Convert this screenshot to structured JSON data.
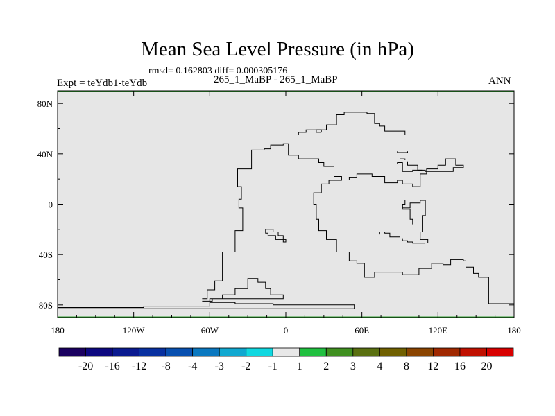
{
  "chart_data": {
    "type": "map",
    "title": "Mean Sea Level Pressure (in hPa)",
    "stats": "rmsd= 0.162803 diff= 0.000305176",
    "left_label": "Expt = teYdb1-teYdb",
    "center_label": "265_1_MaBP - 265_1_MaBP",
    "right_label": "ANN",
    "field_fill_color": "#e6e6e6",
    "lon_ticks": [
      {
        "value": -180,
        "label": "180"
      },
      {
        "value": -120,
        "label": "120W"
      },
      {
        "value": -60,
        "label": "60W"
      },
      {
        "value": 0,
        "label": "0"
      },
      {
        "value": 60,
        "label": "60E"
      },
      {
        "value": 120,
        "label": "120E"
      },
      {
        "value": 180,
        "label": "180"
      }
    ],
    "lat_ticks": [
      {
        "value": 80,
        "label": "80N"
      },
      {
        "value": 40,
        "label": "40N"
      },
      {
        "value": 0,
        "label": "0"
      },
      {
        "value": -40,
        "label": "40S"
      },
      {
        "value": -80,
        "label": "80S"
      }
    ],
    "lon_range": [
      -180,
      180
    ],
    "lat_range": [
      -90,
      90
    ],
    "colorbar": {
      "labels": [
        "-20",
        "-16",
        "-12",
        "-8",
        "-4",
        "-3",
        "-2",
        "-1",
        "1",
        "2",
        "3",
        "4",
        "8",
        "12",
        "16",
        "20"
      ],
      "colors": [
        "#1a0060",
        "#0d0880",
        "#0a1a90",
        "#0830a0",
        "#0850b0",
        "#0a78c0",
        "#10a8d0",
        "#10d8e0",
        "#e8e8e8",
        "#20c040",
        "#409020",
        "#5a7010",
        "#706000",
        "#8a4400",
        "#a02800",
        "#c01000",
        "#d80000"
      ]
    },
    "coastlines": [
      [
        [
          -180,
          -82
        ],
        [
          -112,
          -82
        ],
        [
          -112,
          -81
        ],
        [
          -60,
          -81
        ],
        [
          -60,
          -78
        ],
        [
          -40,
          -78
        ],
        [
          -40,
          -79
        ],
        [
          -10,
          -79
        ],
        [
          -10,
          -80
        ],
        [
          54,
          -80
        ],
        [
          54,
          -83
        ],
        [
          -180,
          -83
        ]
      ],
      [
        [
          -66,
          -75
        ],
        [
          -62,
          -75
        ],
        [
          -62,
          -68
        ],
        [
          -56,
          -68
        ],
        [
          -56,
          -61
        ],
        [
          -50,
          -61
        ],
        [
          -50,
          -38
        ],
        [
          -40,
          -38
        ],
        [
          -40,
          -21
        ],
        [
          -34,
          -21
        ],
        [
          -34,
          -3
        ],
        [
          -37,
          -3
        ],
        [
          -37,
          4
        ],
        [
          -35,
          4
        ],
        [
          -35,
          14
        ],
        [
          -38,
          14
        ],
        [
          -38,
          28
        ],
        [
          -27,
          28
        ],
        [
          -27,
          43
        ],
        [
          -17,
          43
        ],
        [
          -17,
          44
        ],
        [
          -12,
          44
        ],
        [
          -12,
          47
        ],
        [
          -2,
          47
        ],
        [
          -2,
          48
        ],
        [
          2,
          48
        ],
        [
          2,
          39
        ],
        [
          10,
          39
        ],
        [
          10,
          36
        ],
        [
          26,
          36
        ],
        [
          26,
          33
        ],
        [
          30,
          33
        ],
        [
          30,
          30
        ],
        [
          38,
          30
        ],
        [
          38,
          22
        ],
        [
          44,
          22
        ],
        [
          44,
          19
        ],
        [
          34,
          19
        ],
        [
          34,
          16
        ],
        [
          28,
          16
        ],
        [
          28,
          9
        ],
        [
          22,
          9
        ],
        [
          22,
          0
        ],
        [
          24,
          0
        ],
        [
          24,
          -12
        ],
        [
          26,
          -12
        ],
        [
          26,
          -21
        ],
        [
          32,
          -21
        ],
        [
          32,
          -28
        ],
        [
          40,
          -28
        ],
        [
          40,
          -38
        ],
        [
          50,
          -38
        ],
        [
          50,
          -45
        ],
        [
          56,
          -45
        ],
        [
          56,
          -47
        ],
        [
          62,
          -47
        ],
        [
          62,
          -58
        ],
        [
          70,
          -58
        ],
        [
          70,
          -54
        ],
        [
          92,
          -54
        ],
        [
          92,
          -56
        ],
        [
          105,
          -56
        ],
        [
          105,
          -51
        ],
        [
          115,
          -51
        ],
        [
          115,
          -47
        ],
        [
          124,
          -47
        ],
        [
          124,
          -48
        ],
        [
          130,
          -48
        ],
        [
          130,
          -44
        ],
        [
          140,
          -44
        ],
        [
          140,
          -45
        ],
        [
          142,
          -45
        ],
        [
          142,
          -50
        ],
        [
          148,
          -50
        ],
        [
          148,
          -55
        ],
        [
          152,
          -55
        ],
        [
          152,
          -58
        ],
        [
          160,
          -58
        ],
        [
          160,
          -79
        ],
        [
          180,
          -79
        ]
      ],
      [
        [
          -66,
          -77
        ],
        [
          -58,
          -77
        ],
        [
          -58,
          -75
        ],
        [
          -50,
          -75
        ],
        [
          -50,
          -72
        ],
        [
          -40,
          -72
        ],
        [
          -40,
          -67
        ],
        [
          -30,
          -67
        ],
        [
          -30,
          -59
        ],
        [
          -22,
          -59
        ],
        [
          -22,
          -62
        ],
        [
          -16,
          -62
        ],
        [
          -16,
          -67
        ],
        [
          -12,
          -67
        ],
        [
          -12,
          -72
        ],
        [
          -2,
          -72
        ],
        [
          -2,
          -75
        ],
        [
          -60,
          -75
        ],
        [
          -60,
          -77
        ],
        [
          -66,
          -77
        ]
      ],
      [
        [
          -16,
          -20
        ],
        [
          -10,
          -20
        ],
        [
          -10,
          -22
        ],
        [
          -6,
          -22
        ],
        [
          -6,
          -25
        ],
        [
          -2,
          -25
        ],
        [
          -2,
          -28
        ],
        [
          0,
          -28
        ],
        [
          0,
          -30
        ],
        [
          -2,
          -30
        ],
        [
          -2,
          -28
        ],
        [
          -8,
          -28
        ],
        [
          -8,
          -25
        ],
        [
          -14,
          -25
        ],
        [
          -14,
          -23
        ],
        [
          -16,
          -23
        ],
        [
          -16,
          -20
        ]
      ],
      [
        [
          50,
          19
        ],
        [
          50,
          21
        ],
        [
          56,
          21
        ],
        [
          56,
          24
        ],
        [
          68,
          24
        ],
        [
          68,
          22
        ],
        [
          78,
          22
        ],
        [
          78,
          17
        ],
        [
          88,
          17
        ],
        [
          88,
          19
        ],
        [
          92,
          19
        ],
        [
          92,
          16
        ],
        [
          100,
          16
        ],
        [
          100,
          14
        ],
        [
          106,
          14
        ],
        [
          106,
          24
        ],
        [
          111,
          24
        ],
        [
          111,
          28
        ],
        [
          120,
          28
        ],
        [
          120,
          31
        ],
        [
          126,
          31
        ],
        [
          126,
          36
        ],
        [
          134,
          36
        ],
        [
          134,
          31
        ],
        [
          140,
          31
        ],
        [
          140,
          29
        ],
        [
          132,
          29
        ],
        [
          132,
          26
        ],
        [
          110,
          26
        ],
        [
          110,
          27
        ],
        [
          100,
          27
        ],
        [
          100,
          26
        ],
        [
          92,
          26
        ],
        [
          92,
          33
        ],
        [
          88,
          33
        ],
        [
          88,
          32
        ]
      ],
      [
        [
          10,
          55
        ],
        [
          10,
          57
        ],
        [
          16,
          57
        ],
        [
          16,
          59
        ],
        [
          32,
          59
        ],
        [
          32,
          63
        ],
        [
          40,
          63
        ],
        [
          40,
          71
        ],
        [
          46,
          71
        ],
        [
          46,
          73
        ],
        [
          64,
          73
        ],
        [
          64,
          72
        ],
        [
          70,
          72
        ],
        [
          70,
          64
        ],
        [
          74,
          64
        ],
        [
          74,
          62
        ],
        [
          78,
          62
        ],
        [
          78,
          58
        ],
        [
          94,
          58
        ],
        [
          94,
          55
        ]
      ],
      [
        [
          28,
          57
        ],
        [
          28,
          59
        ],
        [
          24,
          59
        ],
        [
          24,
          57
        ],
        [
          28,
          57
        ]
      ],
      [
        [
          96,
          34
        ],
        [
          96,
          31
        ],
        [
          104,
          31
        ],
        [
          104,
          27
        ],
        [
          108,
          27
        ]
      ],
      [
        [
          88,
          42
        ],
        [
          88,
          41
        ],
        [
          96,
          41
        ],
        [
          96,
          42
        ]
      ],
      [
        [
          94,
          35
        ],
        [
          94,
          36
        ],
        [
          90,
          36
        ]
      ],
      [
        [
          90,
          -24
        ],
        [
          90,
          -26
        ],
        [
          82,
          -26
        ],
        [
          82,
          -23
        ],
        [
          78,
          -23
        ],
        [
          78,
          -22
        ],
        [
          74,
          -22
        ],
        [
          74,
          -24
        ]
      ],
      [
        [
          112,
          -31
        ],
        [
          112,
          -28
        ],
        [
          106,
          -28
        ],
        [
          106,
          -22
        ],
        [
          108,
          -22
        ],
        [
          108,
          -9
        ],
        [
          110,
          -9
        ],
        [
          110,
          3
        ],
        [
          106,
          3
        ],
        [
          106,
          1
        ],
        [
          98,
          1
        ],
        [
          98,
          -3
        ],
        [
          92,
          -3
        ],
        [
          92,
          0
        ],
        [
          94,
          0
        ],
        [
          94,
          3
        ]
      ],
      [
        [
          100,
          -16
        ],
        [
          100,
          -12
        ],
        [
          98,
          -12
        ],
        [
          98,
          -4
        ],
        [
          92,
          -4
        ],
        [
          92,
          0
        ]
      ],
      [
        [
          110,
          -31
        ],
        [
          100,
          -31
        ],
        [
          100,
          -30
        ],
        [
          96,
          -30
        ],
        [
          96,
          -29
        ],
        [
          92,
          -29
        ],
        [
          92,
          -27
        ]
      ]
    ]
  }
}
